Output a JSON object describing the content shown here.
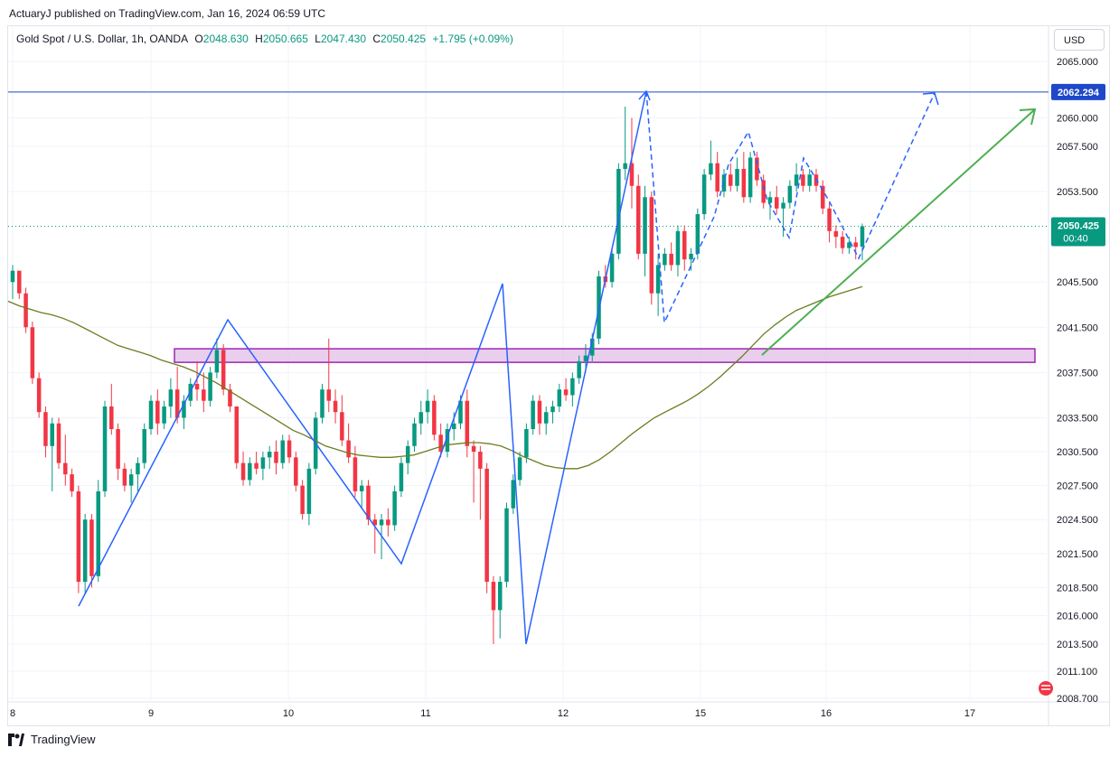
{
  "header": {
    "published_text": "ActuaryJ published on TradingView.com, Jan 16, 2024 06:59 UTC"
  },
  "legend": {
    "symbol": "Gold Spot / U.S. Dollar, 1h, OANDA",
    "open_label": "O",
    "open_value": "2048.630",
    "high_label": "H",
    "high_value": "2050.665",
    "low_label": "L",
    "low_value": "2047.430",
    "close_label": "C",
    "close_value": "2050.425",
    "change": "+1.795 (+0.09%)"
  },
  "currency_button": "USD",
  "footer": {
    "brand": "TradingView"
  },
  "colors": {
    "up": "#089981",
    "down": "#f23645",
    "pattern_line": "#2962ff",
    "moving_average": "#6b7d1f",
    "trend_arrow": "#4caf50",
    "zone_fill": "#e1bee7",
    "zone_border": "#9c27b0",
    "level_line": "#1e48c8"
  },
  "chart_data": {
    "type": "candlestick",
    "symbol": "Gold Spot / U.S. Dollar",
    "interval": "1h",
    "yaxis": {
      "ticks": [
        "2065.000",
        "2060.000",
        "2057.500",
        "2053.500",
        "2045.500",
        "2041.500",
        "2037.500",
        "2033.500",
        "2030.500",
        "2027.500",
        "2024.500",
        "2021.500",
        "2018.500",
        "2016.000",
        "2013.500",
        "2011.100",
        "2008.700"
      ],
      "range": [
        2008.5,
        2066
      ]
    },
    "xaxis": {
      "ticks": [
        "8",
        "9",
        "10",
        "11",
        "12",
        "15",
        "16",
        "17"
      ]
    },
    "price_labels": {
      "level": "2062.294",
      "last_price": "2050.425",
      "countdown": "00:40"
    },
    "grid": true,
    "candles": [
      [
        2045.5,
        2047.0,
        2044.0,
        2046.5
      ],
      [
        2046.5,
        2046.5,
        2044.0,
        2044.5
      ],
      [
        2044.5,
        2045.0,
        2041.0,
        2041.5
      ],
      [
        2041.5,
        2042.0,
        2036.5,
        2037.0
      ],
      [
        2037.0,
        2037.5,
        2033.5,
        2034.0
      ],
      [
        2034.0,
        2034.5,
        2030.0,
        2031.0
      ],
      [
        2031.0,
        2033.5,
        2027.0,
        2033.0
      ],
      [
        2033.0,
        2033.5,
        2029.0,
        2029.5
      ],
      [
        2029.5,
        2032.0,
        2027.5,
        2028.5
      ],
      [
        2028.5,
        2029.0,
        2026.5,
        2027.0
      ],
      [
        2027.0,
        2027.5,
        2018.0,
        2019.0
      ],
      [
        2019.0,
        2025.0,
        2018.0,
        2024.5
      ],
      [
        2024.5,
        2025.0,
        2018.5,
        2019.5
      ],
      [
        2019.5,
        2028.0,
        2019.0,
        2027.0
      ],
      [
        2027.0,
        2035.0,
        2026.5,
        2034.5
      ],
      [
        2034.5,
        2036.5,
        2032.0,
        2032.5
      ],
      [
        2032.5,
        2033.0,
        2028.0,
        2029.0
      ],
      [
        2029.0,
        2029.5,
        2027.0,
        2027.5
      ],
      [
        2027.5,
        2029.0,
        2026.0,
        2028.5
      ],
      [
        2028.5,
        2030.0,
        2027.0,
        2029.5
      ],
      [
        2029.5,
        2033.0,
        2029.0,
        2032.5
      ],
      [
        2032.5,
        2035.5,
        2032.0,
        2035.0
      ],
      [
        2035.0,
        2036.0,
        2032.0,
        2033.0
      ],
      [
        2033.0,
        2035.0,
        2032.5,
        2034.5
      ],
      [
        2034.5,
        2037.0,
        2033.5,
        2036.0
      ],
      [
        2036.0,
        2038.0,
        2033.0,
        2033.5
      ],
      [
        2033.5,
        2035.5,
        2032.5,
        2035.0
      ],
      [
        2035.0,
        2037.0,
        2034.5,
        2036.5
      ],
      [
        2036.5,
        2038.5,
        2035.0,
        2036.0
      ],
      [
        2036.0,
        2037.5,
        2034.0,
        2035.0
      ],
      [
        2035.0,
        2038.0,
        2034.5,
        2037.5
      ],
      [
        2037.5,
        2040.5,
        2037.0,
        2039.5
      ],
      [
        2039.5,
        2040.0,
        2035.5,
        2036.0
      ],
      [
        2036.0,
        2036.5,
        2034.0,
        2034.5
      ],
      [
        2034.5,
        2034.5,
        2029.0,
        2029.5
      ],
      [
        2029.5,
        2030.5,
        2027.5,
        2028.0
      ],
      [
        2028.0,
        2030.0,
        2027.5,
        2029.5
      ],
      [
        2029.5,
        2030.5,
        2028.5,
        2029.0
      ],
      [
        2029.0,
        2030.5,
        2028.0,
        2030.0
      ],
      [
        2030.0,
        2031.0,
        2029.0,
        2030.5
      ],
      [
        2030.5,
        2031.5,
        2028.5,
        2029.5
      ],
      [
        2029.5,
        2032.0,
        2029.0,
        2031.5
      ],
      [
        2031.5,
        2032.0,
        2029.5,
        2030.0
      ],
      [
        2030.0,
        2030.5,
        2027.0,
        2027.5
      ],
      [
        2027.5,
        2028.0,
        2024.5,
        2025.0
      ],
      [
        2025.0,
        2029.5,
        2024.0,
        2029.0
      ],
      [
        2029.0,
        2034.0,
        2028.5,
        2033.5
      ],
      [
        2033.5,
        2036.5,
        2033.0,
        2036.0
      ],
      [
        2036.0,
        2040.5,
        2034.0,
        2035.0
      ],
      [
        2035.0,
        2036.0,
        2033.0,
        2034.0
      ],
      [
        2034.0,
        2035.5,
        2031.0,
        2031.5
      ],
      [
        2031.5,
        2033.0,
        2029.5,
        2030.0
      ],
      [
        2030.0,
        2031.0,
        2026.5,
        2027.0
      ],
      [
        2027.0,
        2028.0,
        2025.5,
        2027.5
      ],
      [
        2027.5,
        2028.0,
        2024.0,
        2024.5
      ],
      [
        2024.5,
        2025.0,
        2021.5,
        2024.0
      ],
      [
        2024.0,
        2025.0,
        2021.0,
        2024.5
      ],
      [
        2024.5,
        2025.5,
        2023.0,
        2024.0
      ],
      [
        2024.0,
        2027.5,
        2023.5,
        2027.0
      ],
      [
        2027.0,
        2030.0,
        2026.5,
        2029.5
      ],
      [
        2029.5,
        2031.5,
        2028.5,
        2031.0
      ],
      [
        2031.0,
        2033.5,
        2030.5,
        2033.0
      ],
      [
        2033.0,
        2035.0,
        2032.0,
        2034.0
      ],
      [
        2034.0,
        2036.0,
        2033.0,
        2035.0
      ],
      [
        2035.0,
        2035.5,
        2031.5,
        2032.0
      ],
      [
        2032.0,
        2033.0,
        2030.0,
        2030.5
      ],
      [
        2030.5,
        2033.0,
        2030.0,
        2032.5
      ],
      [
        2032.5,
        2034.0,
        2031.5,
        2033.0
      ],
      [
        2033.0,
        2035.5,
        2032.5,
        2035.0
      ],
      [
        2035.0,
        2036.0,
        2030.0,
        2031.0
      ],
      [
        2031.0,
        2031.5,
        2026.0,
        2030.5
      ],
      [
        2030.5,
        2031.0,
        2024.5,
        2029.0
      ],
      [
        2029.0,
        2029.5,
        2018.0,
        2019.0
      ],
      [
        2019.0,
        2019.5,
        2013.5,
        2016.5
      ],
      [
        2016.5,
        2019.5,
        2014.0,
        2019.0
      ],
      [
        2019.0,
        2026.0,
        2018.5,
        2025.5
      ],
      [
        2025.5,
        2028.5,
        2025.0,
        2028.0
      ],
      [
        2028.0,
        2030.5,
        2027.5,
        2030.0
      ],
      [
        2030.0,
        2033.0,
        2029.5,
        2032.5
      ],
      [
        2032.5,
        2035.5,
        2032.0,
        2035.0
      ],
      [
        2035.0,
        2035.5,
        2032.0,
        2033.0
      ],
      [
        2033.0,
        2034.5,
        2032.0,
        2034.0
      ],
      [
        2034.0,
        2035.0,
        2033.0,
        2034.5
      ],
      [
        2034.5,
        2036.5,
        2034.0,
        2036.0
      ],
      [
        2036.0,
        2037.0,
        2035.0,
        2035.5
      ],
      [
        2035.5,
        2037.5,
        2034.5,
        2037.0
      ],
      [
        2037.0,
        2039.0,
        2036.5,
        2038.5
      ],
      [
        2038.5,
        2040.0,
        2037.5,
        2039.0
      ],
      [
        2039.0,
        2041.0,
        2038.5,
        2040.5
      ],
      [
        2040.5,
        2046.5,
        2040.0,
        2046.0
      ],
      [
        2046.0,
        2047.0,
        2045.0,
        2045.5
      ],
      [
        2045.5,
        2048.5,
        2045.0,
        2048.0
      ],
      [
        2048.0,
        2056.0,
        2047.5,
        2055.5
      ],
      [
        2055.5,
        2061.0,
        2054.5,
        2056.0
      ],
      [
        2056.0,
        2060.0,
        2052.0,
        2054.0
      ],
      [
        2054.0,
        2055.0,
        2047.5,
        2048.0
      ],
      [
        2048.0,
        2054.0,
        2046.0,
        2053.0
      ],
      [
        2053.0,
        2053.5,
        2043.5,
        2044.5
      ],
      [
        2044.5,
        2048.0,
        2042.5,
        2047.0
      ],
      [
        2047.0,
        2048.5,
        2046.5,
        2048.0
      ],
      [
        2048.0,
        2049.0,
        2046.5,
        2047.0
      ],
      [
        2047.0,
        2050.5,
        2046.0,
        2050.0
      ],
      [
        2050.0,
        2050.5,
        2046.5,
        2047.5
      ],
      [
        2047.5,
        2048.5,
        2046.5,
        2048.0
      ],
      [
        2048.0,
        2052.0,
        2047.5,
        2051.5
      ],
      [
        2051.5,
        2055.5,
        2051.0,
        2055.0
      ],
      [
        2055.0,
        2058.0,
        2054.5,
        2056.0
      ],
      [
        2056.0,
        2057.0,
        2053.0,
        2053.5
      ],
      [
        2053.5,
        2055.5,
        2053.0,
        2055.0
      ],
      [
        2055.0,
        2056.0,
        2053.5,
        2054.0
      ],
      [
        2054.0,
        2056.5,
        2053.5,
        2055.5
      ],
      [
        2055.5,
        2057.0,
        2052.5,
        2053.0
      ],
      [
        2053.0,
        2057.0,
        2052.5,
        2056.5
      ],
      [
        2056.5,
        2057.0,
        2054.0,
        2054.5
      ],
      [
        2054.5,
        2055.0,
        2052.0,
        2052.5
      ],
      [
        2052.5,
        2053.5,
        2051.0,
        2053.0
      ],
      [
        2053.0,
        2054.0,
        2051.5,
        2052.0
      ],
      [
        2052.0,
        2053.0,
        2049.5,
        2052.5
      ],
      [
        2052.5,
        2054.5,
        2052.0,
        2054.0
      ],
      [
        2054.0,
        2056.0,
        2053.5,
        2055.0
      ],
      [
        2055.0,
        2055.5,
        2053.5,
        2054.0
      ],
      [
        2054.0,
        2055.5,
        2053.5,
        2055.0
      ],
      [
        2055.0,
        2055.5,
        2053.5,
        2054.0
      ],
      [
        2054.0,
        2054.5,
        2051.5,
        2052.0
      ],
      [
        2052.0,
        2052.5,
        2049.0,
        2050.0
      ],
      [
        2050.0,
        2050.5,
        2048.5,
        2049.5
      ],
      [
        2049.5,
        2050.0,
        2048.0,
        2048.5
      ],
      [
        2048.5,
        2049.5,
        2048.0,
        2049.0
      ],
      [
        2049.0,
        2049.5,
        2047.5,
        2048.6
      ],
      [
        2048.63,
        2050.665,
        2047.43,
        2050.425
      ]
    ],
    "moving_average": [
      2043.8,
      2043.4,
      2043.1,
      2042.8,
      2042.6,
      2042.3,
      2041.9,
      2041.4,
      2040.9,
      2040.4,
      2039.9,
      2039.6,
      2039.3,
      2039.0,
      2038.6,
      2038.3,
      2038.0,
      2037.6,
      2037.1,
      2036.6,
      2036.0,
      2035.4,
      2034.8,
      2034.2,
      2033.6,
      2033.0,
      2032.4,
      2032.0,
      2031.5,
      2031.0,
      2030.7,
      2030.4,
      2030.2,
      2030.1,
      2030.0,
      2030.0,
      2030.1,
      2030.2,
      2030.5,
      2030.8,
      2031.1,
      2031.2,
      2031.3,
      2031.3,
      2031.2,
      2031.0,
      2030.6,
      2030.1,
      2029.7,
      2029.3,
      2029.1,
      2029.0,
      2029.0,
      2029.3,
      2029.8,
      2030.5,
      2031.3,
      2032.1,
      2032.8,
      2033.5,
      2034.0,
      2034.5,
      2035.0,
      2035.6,
      2036.3,
      2037.1,
      2038.0,
      2038.9,
      2039.9,
      2040.9,
      2041.7,
      2042.4,
      2043.0,
      2043.4,
      2043.8,
      2044.2,
      2044.5,
      2044.8,
      2045.1
    ],
    "horizontal_level": 2062.294,
    "zone": {
      "top": 2039.6,
      "bottom": 2038.4
    }
  }
}
